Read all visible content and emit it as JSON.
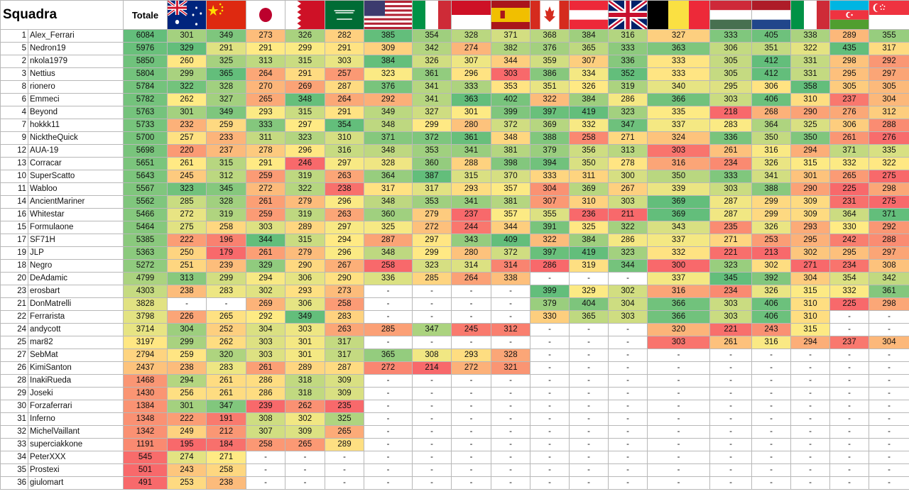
{
  "header": {
    "squadra": "Squadra",
    "totale": "Totale"
  },
  "flags": [
    "australia-flag",
    "china-flag",
    "japan-flag",
    "bahrain-flag",
    "saudi-arabia-flag",
    "usa-flag",
    "italy-flag",
    "monaco-flag",
    "spain-flag",
    "canada-flag",
    "austria-flag",
    "uk-flag",
    "belgium-flag",
    "hungary-flag",
    "netherlands-flag",
    "italy-flag",
    "azerbaijan-flag",
    "singapore-flag"
  ],
  "colors": {
    "high": "#63be7b",
    "mid": "#ffeb84",
    "low": "#f8696b"
  },
  "rows": [
    {
      "rank": "1",
      "name": "Alex_Ferrari",
      "total": "6084",
      "scores": [
        "301",
        "349",
        "273",
        "326",
        "282",
        "385",
        "354",
        "328",
        "371",
        "368",
        "384",
        "316",
        "327",
        "333",
        "405",
        "338",
        "289",
        "355"
      ]
    },
    {
      "rank": "5",
      "name": "Nedron19",
      "total": "5976",
      "scores": [
        "329",
        "291",
        "291",
        "299",
        "291",
        "309",
        "342",
        "274",
        "382",
        "376",
        "365",
        "333",
        "363",
        "306",
        "351",
        "322",
        "435",
        "317"
      ]
    },
    {
      "rank": "2",
      "name": "nkola1979",
      "total": "5850",
      "scores": [
        "260",
        "325",
        "313",
        "315",
        "303",
        "384",
        "326",
        "307",
        "344",
        "359",
        "307",
        "336",
        "333",
        "305",
        "412",
        "331",
        "298",
        "292"
      ]
    },
    {
      "rank": "3",
      "name": "Nettius",
      "total": "5804",
      "scores": [
        "299",
        "365",
        "264",
        "291",
        "257",
        "323",
        "361",
        "296",
        "303",
        "386",
        "334",
        "352",
        "333",
        "305",
        "412",
        "331",
        "295",
        "297"
      ]
    },
    {
      "rank": "8",
      "name": "rionero",
      "total": "5784",
      "scores": [
        "322",
        "328",
        "270",
        "269",
        "287",
        "376",
        "341",
        "333",
        "353",
        "351",
        "326",
        "319",
        "340",
        "295",
        "306",
        "358",
        "305",
        "305"
      ]
    },
    {
      "rank": "6",
      "name": "Emmeci",
      "total": "5782",
      "scores": [
        "262",
        "327",
        "265",
        "348",
        "264",
        "292",
        "341",
        "363",
        "402",
        "322",
        "384",
        "286",
        "366",
        "303",
        "406",
        "310",
        "237",
        "304"
      ]
    },
    {
      "rank": "4",
      "name": "Beyond",
      "total": "5763",
      "scores": [
        "301",
        "349",
        "293",
        "315",
        "291",
        "349",
        "327",
        "301",
        "399",
        "397",
        "419",
        "323",
        "335",
        "218",
        "268",
        "290",
        "276",
        "312"
      ]
    },
    {
      "rank": "7",
      "name": "hokkk11",
      "total": "5733",
      "scores": [
        "232",
        "259",
        "333",
        "297",
        "354",
        "348",
        "299",
        "280",
        "372",
        "369",
        "332",
        "347",
        "337",
        "283",
        "364",
        "325",
        "306",
        "288"
      ]
    },
    {
      "rank": "9",
      "name": "NicktheQuick",
      "total": "5700",
      "scores": [
        "257",
        "233",
        "311",
        "323",
        "310",
        "371",
        "372",
        "361",
        "348",
        "388",
        "258",
        "271",
        "324",
        "336",
        "350",
        "350",
        "261",
        "276"
      ]
    },
    {
      "rank": "12",
      "name": "AUA-19",
      "total": "5698",
      "scores": [
        "220",
        "237",
        "278",
        "296",
        "316",
        "348",
        "353",
        "341",
        "381",
        "379",
        "356",
        "313",
        "303",
        "261",
        "316",
        "294",
        "371",
        "335"
      ]
    },
    {
      "rank": "13",
      "name": "Corracar",
      "total": "5651",
      "scores": [
        "261",
        "315",
        "291",
        "246",
        "297",
        "328",
        "360",
        "288",
        "398",
        "394",
        "350",
        "278",
        "316",
        "234",
        "326",
        "315",
        "332",
        "322"
      ]
    },
    {
      "rank": "10",
      "name": "SuperScatto",
      "total": "5643",
      "scores": [
        "245",
        "312",
        "259",
        "319",
        "263",
        "364",
        "387",
        "315",
        "370",
        "333",
        "311",
        "300",
        "350",
        "333",
        "341",
        "301",
        "265",
        "275"
      ]
    },
    {
      "rank": "11",
      "name": "Wabloo",
      "total": "5567",
      "scores": [
        "323",
        "345",
        "272",
        "322",
        "238",
        "317",
        "317",
        "293",
        "357",
        "304",
        "369",
        "267",
        "339",
        "303",
        "388",
        "290",
        "225",
        "298"
      ]
    },
    {
      "rank": "14",
      "name": "AncientMariner",
      "total": "5562",
      "scores": [
        "285",
        "328",
        "261",
        "279",
        "296",
        "348",
        "353",
        "341",
        "381",
        "307",
        "310",
        "303",
        "369",
        "287",
        "299",
        "309",
        "231",
        "275"
      ]
    },
    {
      "rank": "16",
      "name": "Whitestar",
      "total": "5466",
      "scores": [
        "272",
        "319",
        "259",
        "319",
        "263",
        "360",
        "279",
        "237",
        "357",
        "355",
        "236",
        "211",
        "369",
        "287",
        "299",
        "309",
        "364",
        "371"
      ]
    },
    {
      "rank": "15",
      "name": "Formulaone",
      "total": "5464",
      "scores": [
        "275",
        "258",
        "303",
        "289",
        "297",
        "325",
        "272",
        "244",
        "344",
        "391",
        "325",
        "322",
        "343",
        "235",
        "326",
        "293",
        "330",
        "292"
      ]
    },
    {
      "rank": "17",
      "name": "SF71H",
      "total": "5385",
      "scores": [
        "222",
        "196",
        "344",
        "315",
        "294",
        "287",
        "297",
        "343",
        "409",
        "322",
        "384",
        "286",
        "337",
        "271",
        "253",
        "295",
        "242",
        "288"
      ]
    },
    {
      "rank": "19",
      "name": "JLP",
      "total": "5363",
      "scores": [
        "250",
        "179",
        "261",
        "279",
        "296",
        "348",
        "299",
        "280",
        "372",
        "397",
        "419",
        "323",
        "332",
        "221",
        "213",
        "302",
        "295",
        "297"
      ]
    },
    {
      "rank": "18",
      "name": "Negro",
      "total": "5272",
      "scores": [
        "251",
        "239",
        "329",
        "290",
        "267",
        "258",
        "323",
        "314",
        "314",
        "286",
        "319",
        "344",
        "300",
        "323",
        "302",
        "271",
        "234",
        "308"
      ]
    },
    {
      "rank": "20",
      "name": "DeAdamic",
      "total": "4799",
      "scores": [
        "313",
        "299",
        "294",
        "306",
        "290",
        "336",
        "285",
        "264",
        "338",
        "-",
        "-",
        "-",
        "337",
        "345",
        "392",
        "304",
        "354",
        "342"
      ]
    },
    {
      "rank": "23",
      "name": "erosbart",
      "total": "4303",
      "scores": [
        "238",
        "283",
        "302",
        "293",
        "273",
        "-",
        "-",
        "-",
        "-",
        "399",
        "329",
        "302",
        "316",
        "234",
        "326",
        "315",
        "332",
        "361"
      ]
    },
    {
      "rank": "21",
      "name": "DonMatrelli",
      "total": "3828",
      "scores": [
        "-",
        "-",
        "269",
        "306",
        "258",
        "-",
        "-",
        "-",
        "-",
        "379",
        "404",
        "304",
        "366",
        "303",
        "406",
        "310",
        "225",
        "298"
      ]
    },
    {
      "rank": "22",
      "name": "Ferrarista",
      "total": "3798",
      "scores": [
        "226",
        "265",
        "292",
        "349",
        "283",
        "-",
        "-",
        "-",
        "-",
        "330",
        "365",
        "303",
        "366",
        "303",
        "406",
        "310",
        "-",
        "-"
      ]
    },
    {
      "rank": "24",
      "name": "andycott",
      "total": "3714",
      "scores": [
        "304",
        "252",
        "304",
        "303",
        "263",
        "285",
        "347",
        "245",
        "312",
        "-",
        "-",
        "-",
        "320",
        "221",
        "243",
        "315",
        "-",
        "-"
      ]
    },
    {
      "rank": "25",
      "name": "mar82",
      "total": "3197",
      "scores": [
        "299",
        "262",
        "303",
        "301",
        "317",
        "-",
        "-",
        "-",
        "-",
        "-",
        "-",
        "-",
        "303",
        "261",
        "316",
        "294",
        "237",
        "304"
      ]
    },
    {
      "rank": "27",
      "name": "SebMat",
      "total": "2794",
      "scores": [
        "259",
        "320",
        "303",
        "301",
        "317",
        "365",
        "308",
        "293",
        "328",
        "-",
        "-",
        "-",
        "-",
        "-",
        "-",
        "-",
        "-",
        "-"
      ]
    },
    {
      "rank": "26",
      "name": "KimiSanton",
      "total": "2437",
      "scores": [
        "238",
        "283",
        "261",
        "289",
        "287",
        "272",
        "214",
        "272",
        "321",
        "-",
        "-",
        "-",
        "-",
        "-",
        "-",
        "-",
        "-",
        "-"
      ]
    },
    {
      "rank": "28",
      "name": "InakiRueda",
      "total": "1468",
      "scores": [
        "294",
        "261",
        "286",
        "318",
        "309",
        "-",
        "-",
        "-",
        "-",
        "-",
        "-",
        "-",
        "-",
        "-",
        "-",
        "-",
        "-",
        "-"
      ]
    },
    {
      "rank": "29",
      "name": "Joseki",
      "total": "1430",
      "scores": [
        "256",
        "261",
        "286",
        "318",
        "309",
        "-",
        "-",
        "-",
        "-",
        "-",
        "-",
        "-",
        "-",
        "-",
        "-",
        "-",
        "-",
        "-"
      ]
    },
    {
      "rank": "30",
      "name": "Forzaferrari",
      "total": "1384",
      "scores": [
        "301",
        "347",
        "239",
        "262",
        "235",
        "-",
        "-",
        "-",
        "-",
        "-",
        "-",
        "-",
        "-",
        "-",
        "-",
        "-",
        "-",
        "-"
      ]
    },
    {
      "rank": "31",
      "name": "Inferno",
      "total": "1348",
      "scores": [
        "222",
        "191",
        "308",
        "302",
        "325",
        "-",
        "-",
        "-",
        "-",
        "-",
        "-",
        "-",
        "-",
        "-",
        "-",
        "-",
        "-",
        "-"
      ]
    },
    {
      "rank": "32",
      "name": "MichelVaillant",
      "total": "1342",
      "scores": [
        "249",
        "212",
        "307",
        "309",
        "265",
        "-",
        "-",
        "-",
        "-",
        "-",
        "-",
        "-",
        "-",
        "-",
        "-",
        "-",
        "-",
        "-"
      ]
    },
    {
      "rank": "33",
      "name": "superciakkone",
      "total": "1191",
      "scores": [
        "195",
        "184",
        "258",
        "265",
        "289",
        "-",
        "-",
        "-",
        "-",
        "-",
        "-",
        "-",
        "-",
        "-",
        "-",
        "-",
        "-",
        "-"
      ]
    },
    {
      "rank": "34",
      "name": "PeterXXX",
      "total": "545",
      "scores": [
        "274",
        "271",
        "-",
        "-",
        "-",
        "-",
        "-",
        "-",
        "-",
        "-",
        "-",
        "-",
        "-",
        "-",
        "-",
        "-",
        "-",
        "-"
      ]
    },
    {
      "rank": "35",
      "name": "Prostexi",
      "total": "501",
      "scores": [
        "243",
        "258",
        "-",
        "-",
        "-",
        "-",
        "-",
        "-",
        "-",
        "-",
        "-",
        "-",
        "-",
        "-",
        "-",
        "-",
        "-",
        "-"
      ]
    },
    {
      "rank": "36",
      "name": "giulomart",
      "total": "491",
      "scores": [
        "253",
        "238",
        "-",
        "-",
        "-",
        "-",
        "-",
        "-",
        "-",
        "-",
        "-",
        "-",
        "-",
        "-",
        "-",
        "-",
        "-",
        "-"
      ]
    }
  ]
}
